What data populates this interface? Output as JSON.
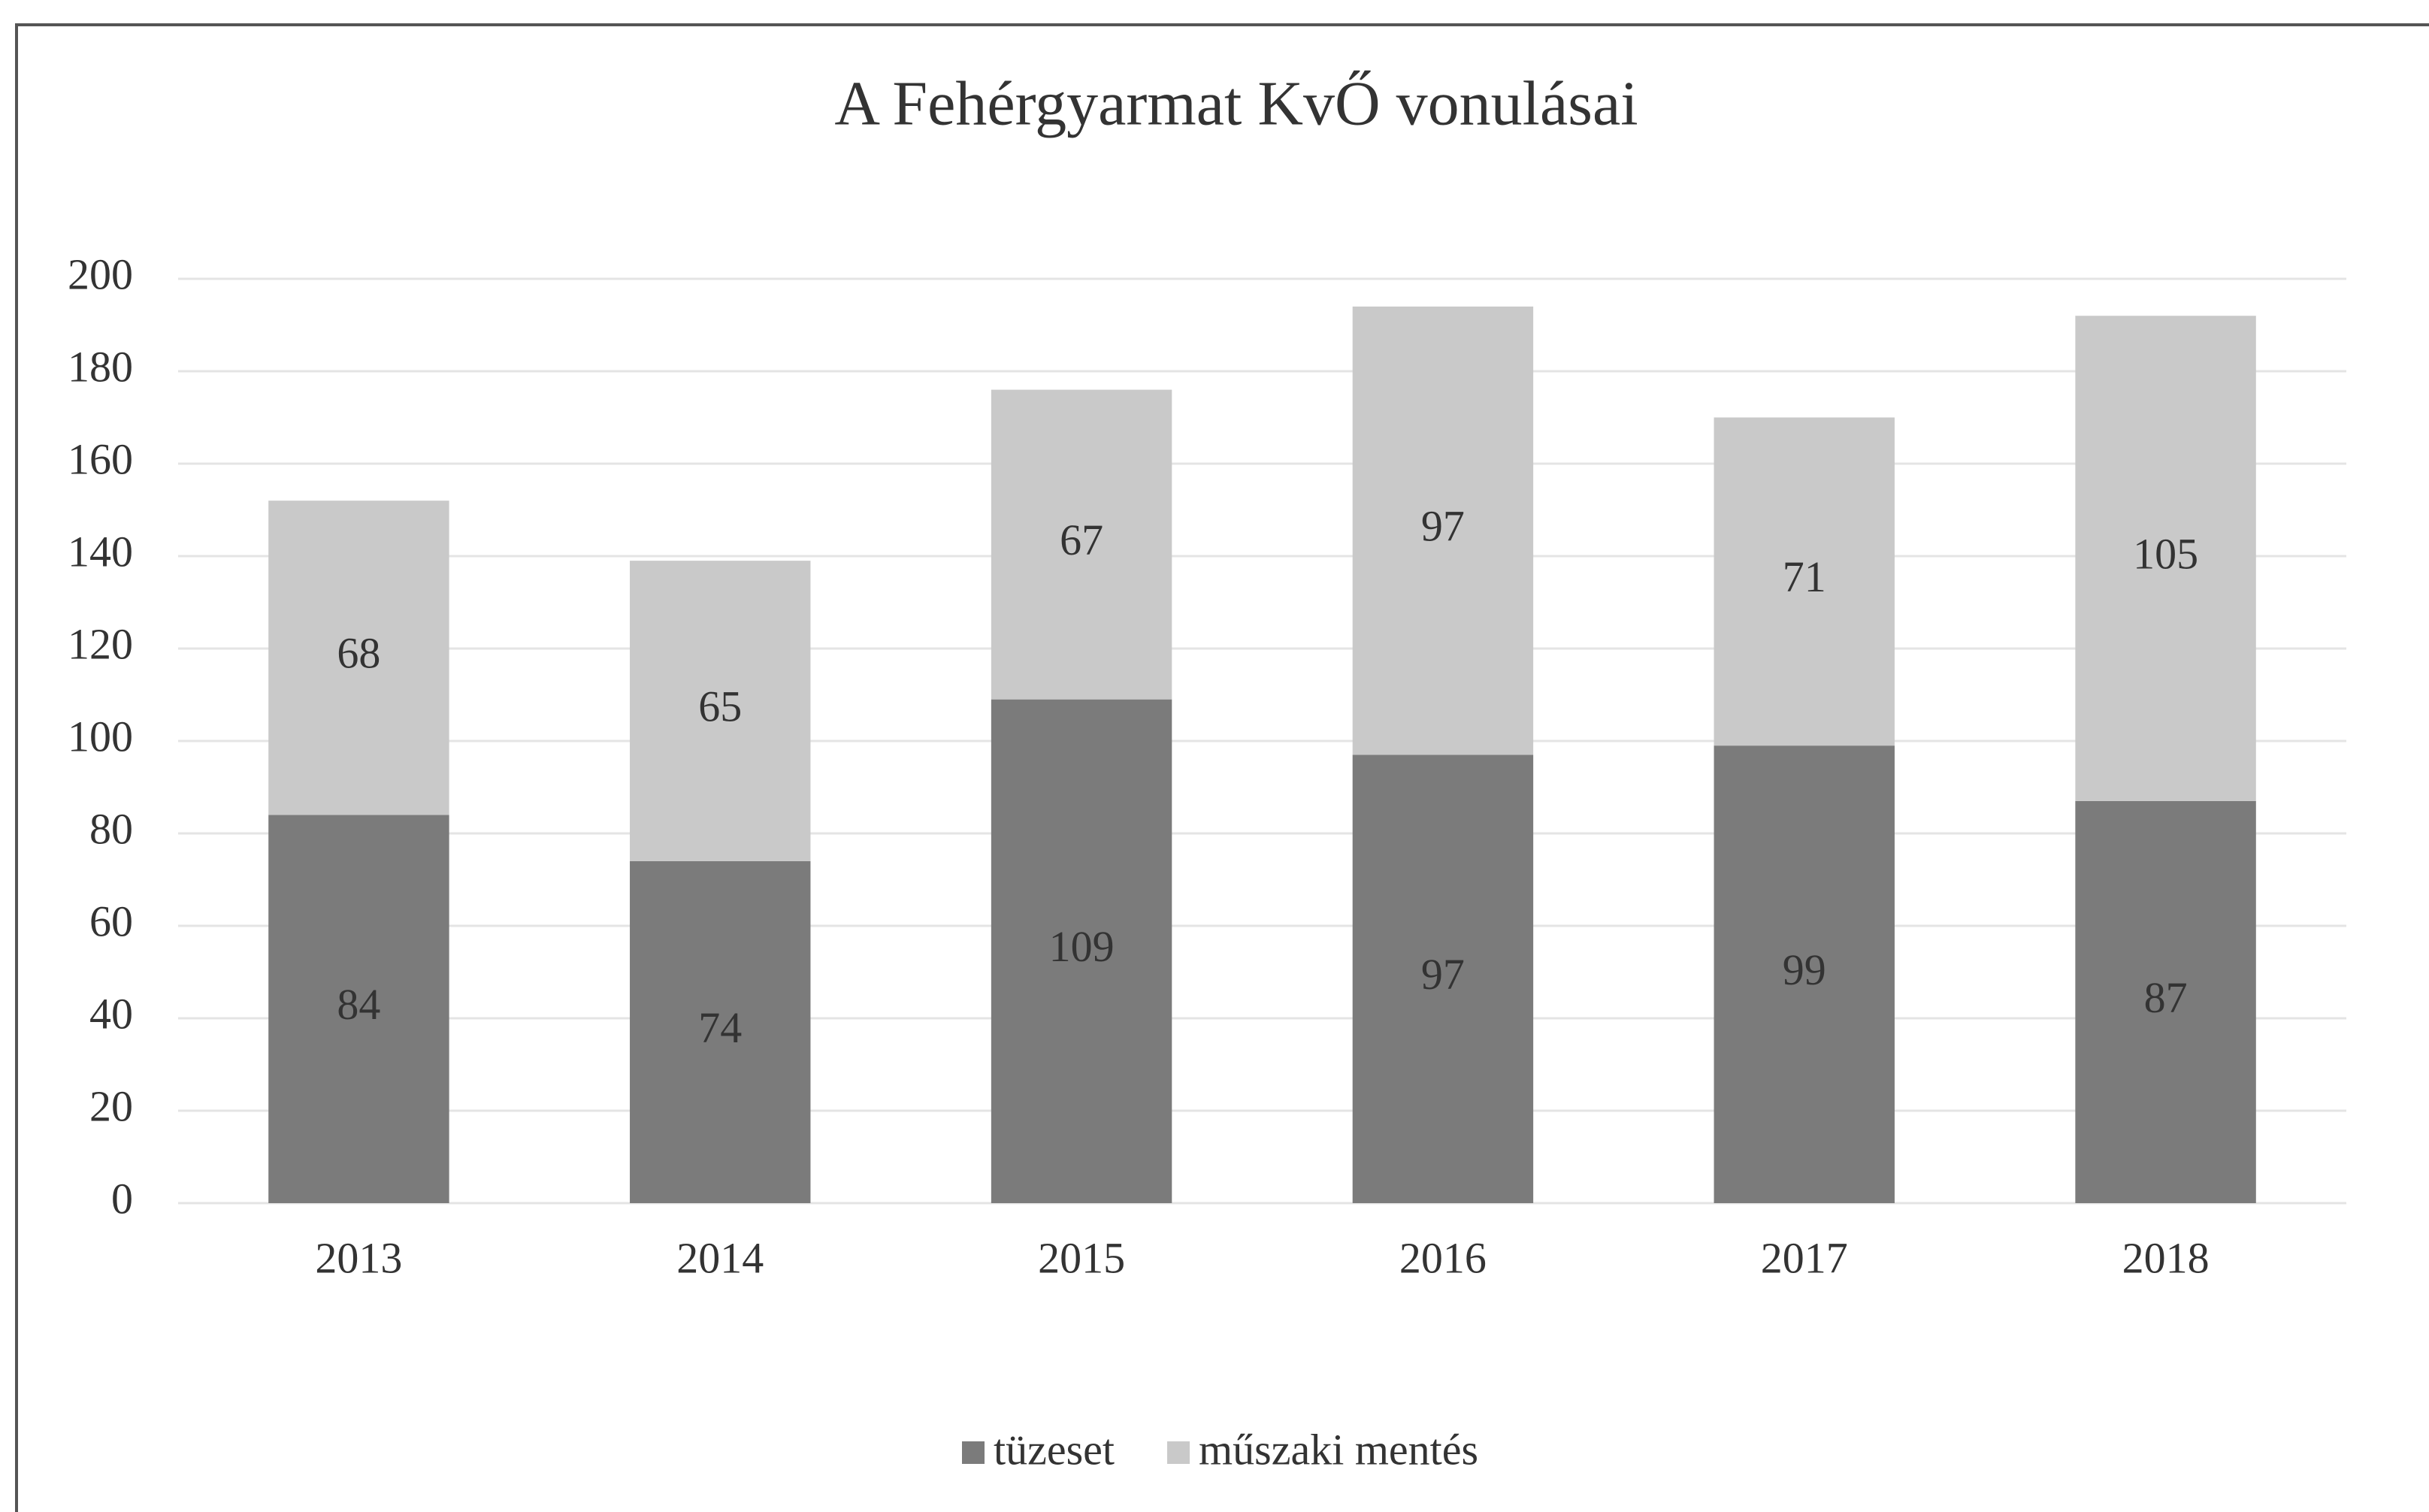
{
  "chart_data": {
    "type": "stacked_bar",
    "title": "A Fehérgyarmat KvŐ vonulásai",
    "categories": [
      "2013",
      "2014",
      "2015",
      "2016",
      "2017",
      "2018"
    ],
    "series": [
      {
        "name": "tüzeset",
        "color": "#7b7b7b",
        "values": [
          84,
          74,
          109,
          97,
          99,
          87
        ]
      },
      {
        "name": "műszaki mentés",
        "color": "#c9c9c9",
        "values": [
          68,
          65,
          67,
          97,
          71,
          105
        ]
      }
    ],
    "ylim": [
      0,
      200
    ],
    "yticks": [
      0,
      20,
      40,
      60,
      80,
      100,
      120,
      140,
      160,
      180,
      200
    ],
    "grid": true,
    "legend": "bottom"
  }
}
